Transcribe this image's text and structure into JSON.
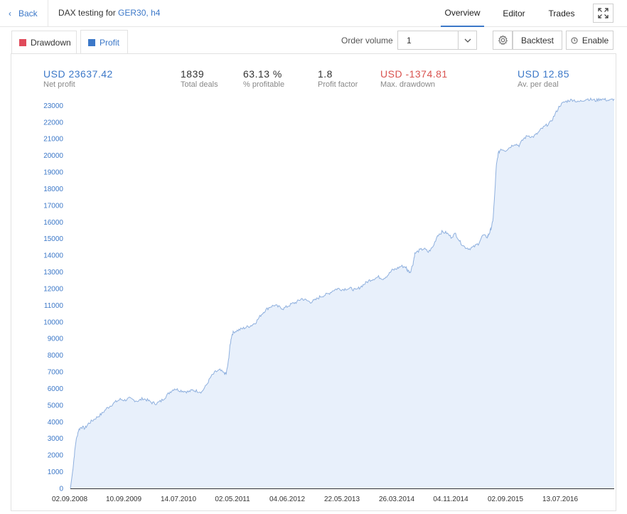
{
  "header": {
    "back_label": "Back",
    "title_prefix": "DAX testing for ",
    "title_symbol": "GER30, h4",
    "nav": [
      "Overview",
      "Editor",
      "Trades"
    ]
  },
  "tabs": [
    {
      "label": "Drawdown",
      "color": "#e04a5a"
    },
    {
      "label": "Profit",
      "color": "#3c78c8"
    }
  ],
  "controls": {
    "order_volume_label": "Order volume",
    "order_volume_value": "1",
    "backtest_label": "Backtest",
    "enable_label": "Enable"
  },
  "stats": [
    {
      "value": "USD 23637.42",
      "label": "Net profit",
      "tone": "blue"
    },
    {
      "value": "1839",
      "label": "Total deals",
      "tone": "plain"
    },
    {
      "value": "63.13 %",
      "label": "% profitable",
      "tone": "plain"
    },
    {
      "value": "1.8",
      "label": "Profit factor",
      "tone": "plain"
    },
    {
      "value": "USD -1374.81",
      "label": "Max. drawdown",
      "tone": "red"
    },
    {
      "value": "USD 12.85",
      "label": "Av. per deal",
      "tone": "blue"
    }
  ],
  "chart_data": {
    "type": "area",
    "title": "",
    "xlabel": "",
    "ylabel": "",
    "ylim": [
      0,
      23400
    ],
    "yticks": [
      0,
      1000,
      2000,
      3000,
      4000,
      5000,
      6000,
      7000,
      8000,
      9000,
      10000,
      11000,
      12000,
      13000,
      14000,
      15000,
      16000,
      17000,
      18000,
      19000,
      20000,
      21000,
      22000,
      23000
    ],
    "xticks": [
      "02.09.2008",
      "10.09.2009",
      "14.07.2010",
      "02.05.2011",
      "04.06.2012",
      "22.05.2013",
      "26.03.2014",
      "04.11.2014",
      "02.09.2015",
      "13.07.2016"
    ],
    "series": [
      {
        "values": [
          [
            0,
            0
          ],
          [
            0.02,
            800
          ],
          [
            0.04,
            1800
          ],
          [
            0.06,
            2800
          ],
          [
            0.09,
            3500
          ],
          [
            0.12,
            3700
          ],
          [
            0.16,
            3600
          ],
          [
            0.2,
            3900
          ],
          [
            0.25,
            4100
          ],
          [
            0.3,
            4300
          ],
          [
            0.35,
            4500
          ],
          [
            0.4,
            4800
          ],
          [
            0.45,
            5000
          ],
          [
            0.5,
            5200
          ],
          [
            0.55,
            5350
          ],
          [
            0.6,
            5300
          ],
          [
            0.65,
            5400
          ],
          [
            0.7,
            5300
          ],
          [
            0.75,
            5250
          ],
          [
            0.8,
            5400
          ],
          [
            0.85,
            5300
          ],
          [
            0.9,
            5150
          ],
          [
            0.95,
            5100
          ],
          [
            1.0,
            5250
          ],
          [
            1.05,
            5500
          ],
          [
            1.1,
            5800
          ],
          [
            1.15,
            6000
          ],
          [
            1.2,
            5900
          ],
          [
            1.25,
            5850
          ],
          [
            1.3,
            5800
          ],
          [
            1.35,
            5900
          ],
          [
            1.4,
            5850
          ],
          [
            1.45,
            5800
          ],
          [
            1.5,
            6200
          ],
          [
            1.55,
            6700
          ],
          [
            1.6,
            7000
          ],
          [
            1.65,
            7100
          ],
          [
            1.7,
            6900
          ],
          [
            1.72,
            6900
          ],
          [
            1.74,
            7500
          ],
          [
            1.76,
            8500
          ],
          [
            1.78,
            9200
          ],
          [
            1.8,
            9400
          ],
          [
            1.85,
            9500
          ],
          [
            1.9,
            9600
          ],
          [
            1.95,
            9700
          ],
          [
            2.0,
            9800
          ],
          [
            2.05,
            10000
          ],
          [
            2.1,
            10400
          ],
          [
            2.15,
            10700
          ],
          [
            2.2,
            10900
          ],
          [
            2.25,
            11000
          ],
          [
            2.3,
            10900
          ],
          [
            2.35,
            10800
          ],
          [
            2.4,
            10950
          ],
          [
            2.45,
            11100
          ],
          [
            2.5,
            11200
          ],
          [
            2.55,
            11400
          ],
          [
            2.6,
            11300
          ],
          [
            2.65,
            11200
          ],
          [
            2.7,
            11300
          ],
          [
            2.75,
            11500
          ],
          [
            2.8,
            11600
          ],
          [
            2.85,
            11700
          ],
          [
            2.9,
            11900
          ],
          [
            2.95,
            12000
          ],
          [
            3.0,
            11950
          ],
          [
            3.05,
            12000
          ],
          [
            3.1,
            12000
          ],
          [
            3.15,
            11900
          ],
          [
            3.2,
            12100
          ],
          [
            3.25,
            12300
          ],
          [
            3.3,
            12500
          ],
          [
            3.35,
            12600
          ],
          [
            3.4,
            12700
          ],
          [
            3.45,
            12600
          ],
          [
            3.5,
            12800
          ],
          [
            3.55,
            13100
          ],
          [
            3.6,
            13200
          ],
          [
            3.65,
            13350
          ],
          [
            3.7,
            13300
          ],
          [
            3.72,
            13100
          ],
          [
            3.75,
            13000
          ],
          [
            3.78,
            13500
          ],
          [
            3.8,
            14100
          ],
          [
            3.85,
            14300
          ],
          [
            3.9,
            14400
          ],
          [
            3.95,
            14200
          ],
          [
            4.0,
            14500
          ],
          [
            4.05,
            15200
          ],
          [
            4.1,
            15400
          ],
          [
            4.15,
            15350
          ],
          [
            4.2,
            15100
          ],
          [
            4.25,
            15300
          ],
          [
            4.3,
            14800
          ],
          [
            4.35,
            14500
          ],
          [
            4.4,
            14400
          ],
          [
            4.45,
            14500
          ],
          [
            4.5,
            14700
          ],
          [
            4.55,
            15200
          ],
          [
            4.6,
            15100
          ],
          [
            4.62,
            15300
          ],
          [
            4.64,
            15600
          ],
          [
            4.66,
            16000
          ],
          [
            4.68,
            17500
          ],
          [
            4.7,
            19400
          ],
          [
            4.72,
            20100
          ],
          [
            4.75,
            20400
          ],
          [
            4.8,
            20300
          ],
          [
            4.85,
            20500
          ],
          [
            4.9,
            20700
          ],
          [
            4.95,
            20600
          ],
          [
            5.0,
            21000
          ],
          [
            5.05,
            21200
          ],
          [
            5.1,
            21100
          ],
          [
            5.15,
            21300
          ],
          [
            5.2,
            21600
          ],
          [
            5.25,
            21800
          ],
          [
            5.3,
            22000
          ],
          [
            5.35,
            22500
          ],
          [
            5.4,
            23000
          ],
          [
            5.45,
            23200
          ],
          [
            5.5,
            23300
          ],
          [
            5.55,
            23350
          ],
          [
            5.6,
            23200
          ],
          [
            5.65,
            23300
          ],
          [
            5.7,
            23400
          ],
          [
            5.75,
            23350
          ],
          [
            5.8,
            23300
          ],
          [
            5.85,
            23400
          ],
          [
            5.9,
            23350
          ],
          [
            5.95,
            23300
          ],
          [
            6.0,
            23400
          ]
        ]
      }
    ]
  }
}
